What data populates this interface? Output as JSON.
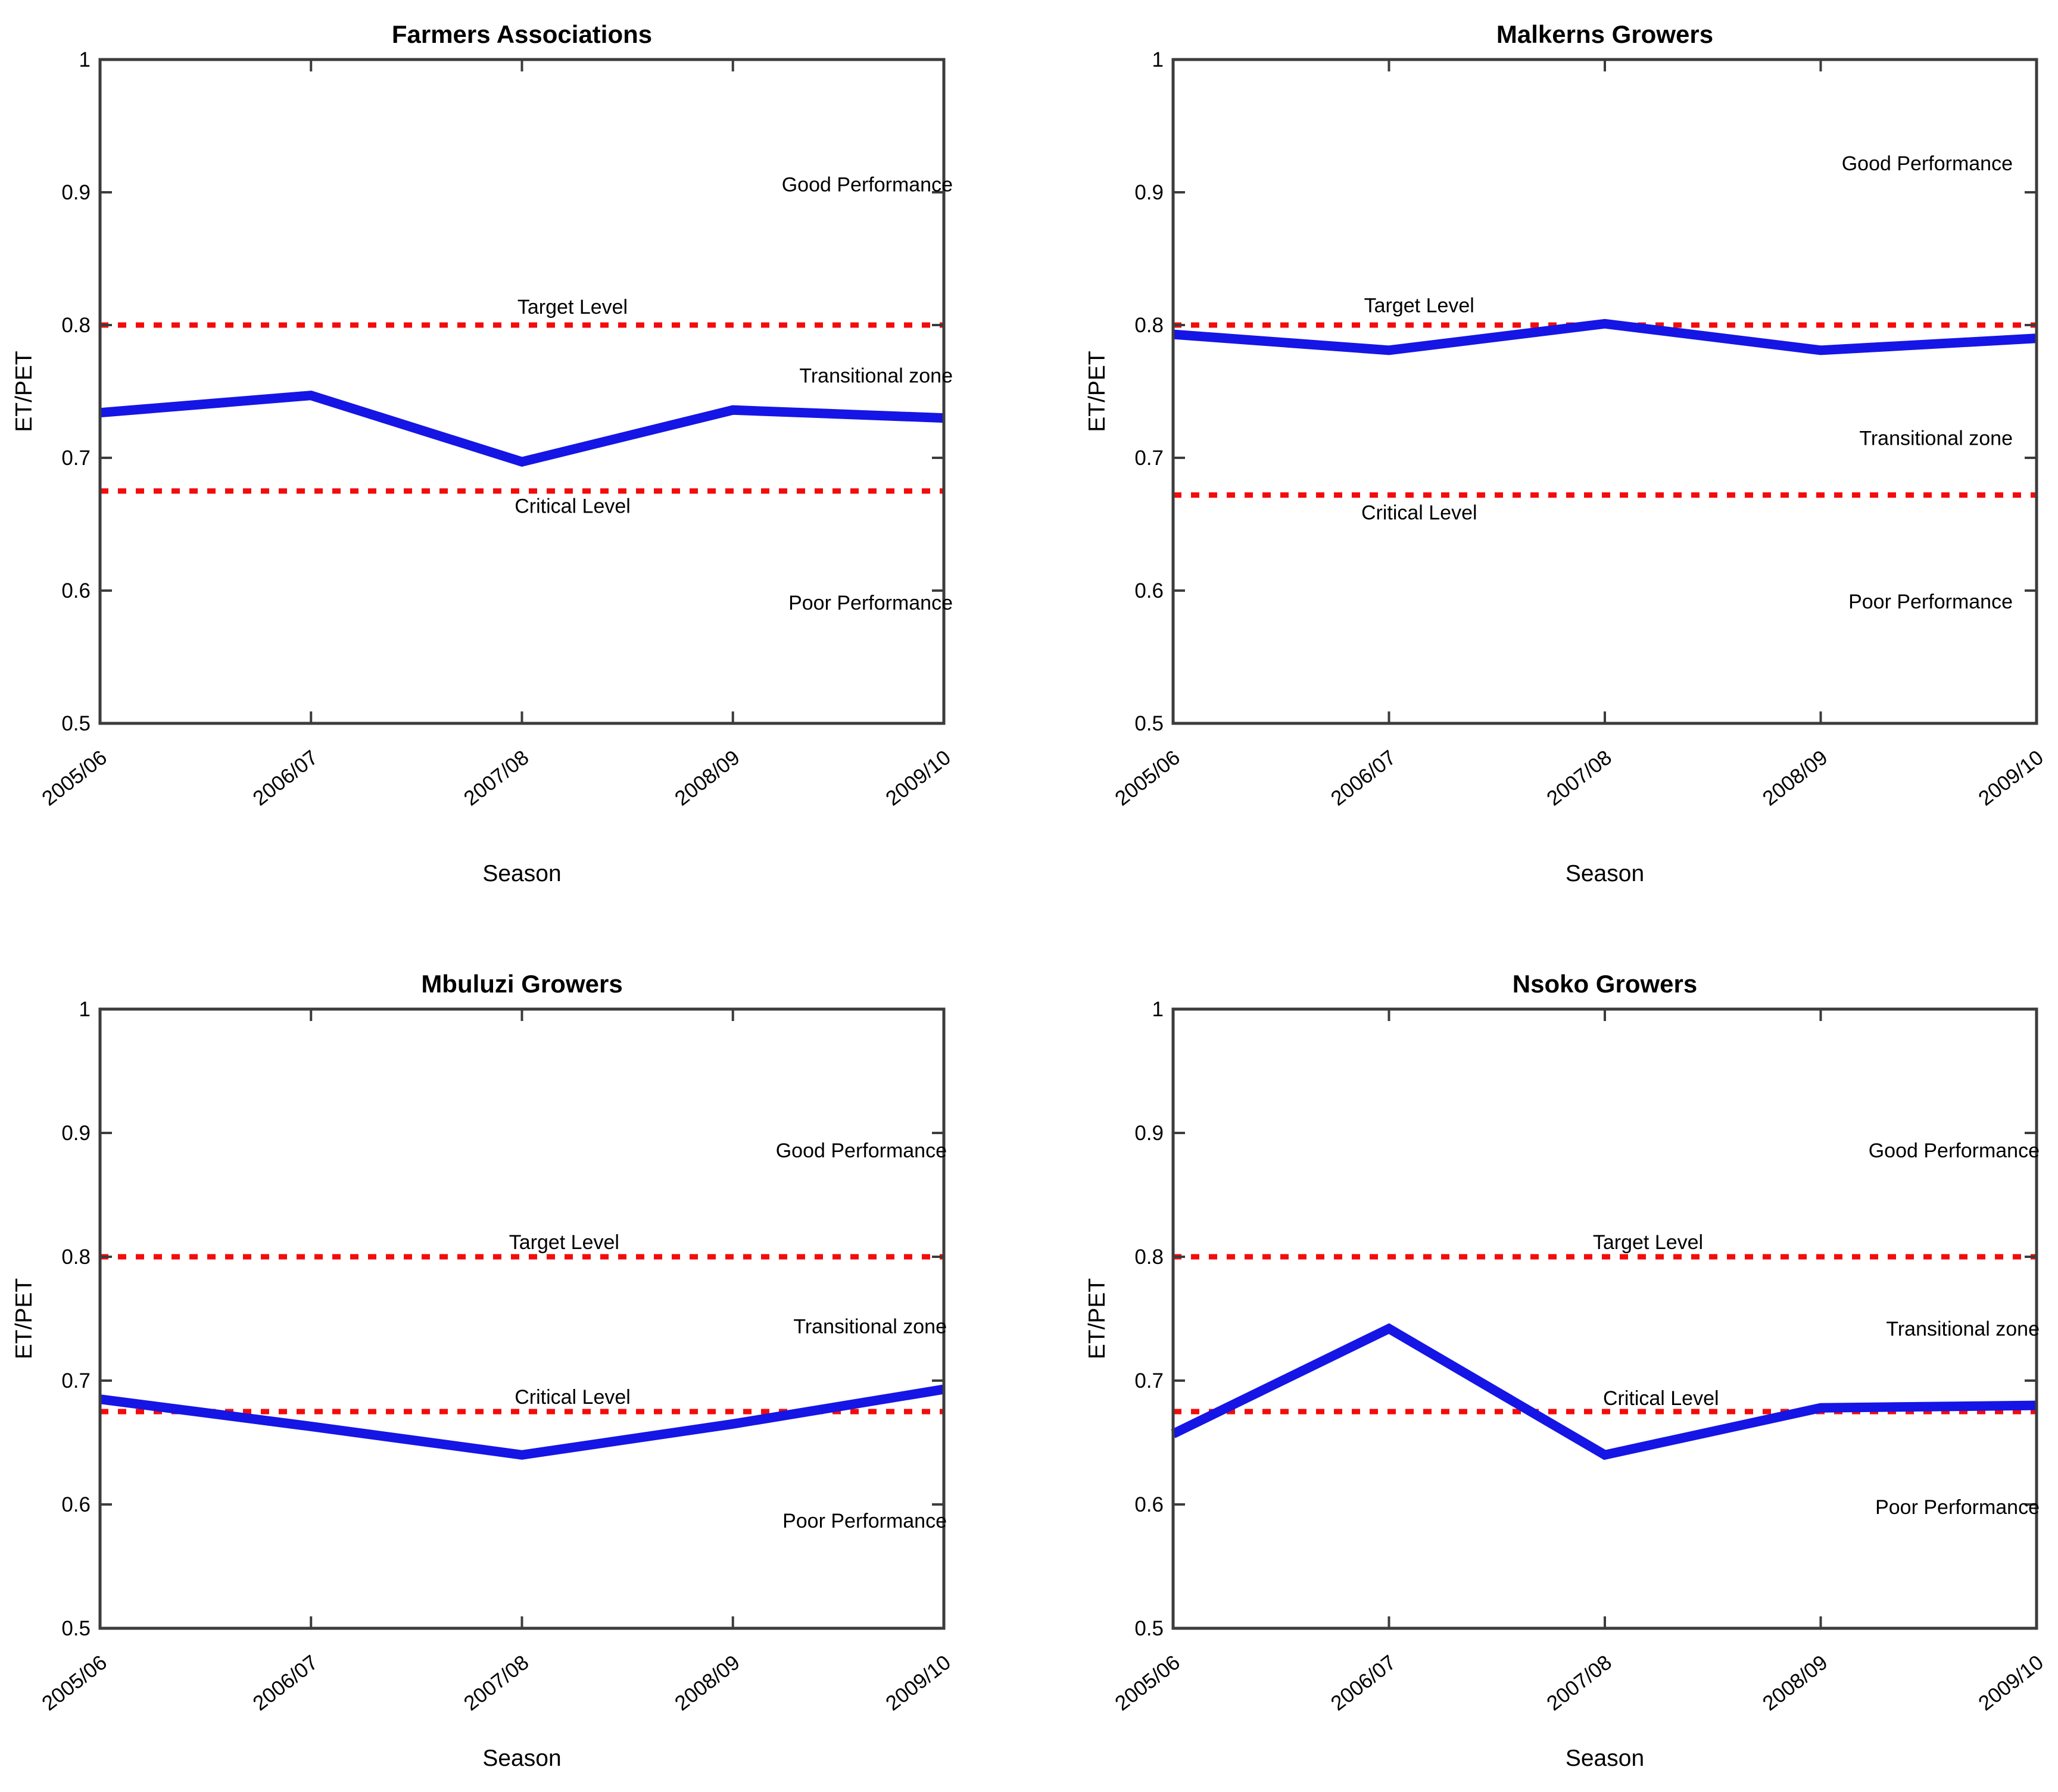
{
  "figure": {
    "description": "ET/PET irrigation scheme performance over seasons, four panels",
    "colors": {
      "line_blue": "#1515e6",
      "dashed_red": "#f40b0b",
      "axis": "#3c3c3c",
      "text": "#000000"
    }
  },
  "chart_data": [
    {
      "type": "line",
      "title": "Farmers Associations",
      "xlabel": "Season",
      "ylabel": "ET/PET",
      "categories": [
        "2005/06",
        "2006/07",
        "2007/08",
        "2008/09",
        "2009/10"
      ],
      "values": [
        0.734,
        0.747,
        0.697,
        0.736,
        0.73
      ],
      "target_level": 0.8,
      "critical_level": 0.675,
      "ylim": [
        0.5,
        1
      ],
      "yticks": [
        "1",
        "0.9",
        "0.8",
        "0.7",
        "0.6",
        "0.5"
      ],
      "legend": "none",
      "grid": false,
      "annotations": [
        {
          "id": "target-level-label",
          "text": "Target Level",
          "xf": 0.56,
          "y": 0.814,
          "align": "middle"
        },
        {
          "id": "critical-level-label",
          "text": "Critical Level",
          "xf": 0.56,
          "y": 0.664,
          "align": "middle"
        },
        {
          "id": "good-performance-label",
          "text": "Good Performance",
          "xf": 1,
          "y": 0.906,
          "align": "end"
        },
        {
          "id": "transitional-zone-label",
          "text": "Transitional zone",
          "xf": 1,
          "y": 0.762,
          "align": "end"
        },
        {
          "id": "poor-performance-label",
          "text": "Poor Performance",
          "xf": 1,
          "y": 0.591,
          "align": "end"
        }
      ]
    },
    {
      "type": "line",
      "title": "Malkerns Growers",
      "xlabel": "Season",
      "ylabel": "ET/PET",
      "categories": [
        "2005/06",
        "2006/07",
        "2007/08",
        "2008/09",
        "2009/10"
      ],
      "values": [
        0.793,
        0.781,
        0.801,
        0.781,
        0.79
      ],
      "target_level": 0.8,
      "critical_level": 0.672,
      "ylim": [
        0.5,
        1
      ],
      "yticks": [
        "1",
        "0.9",
        "0.8",
        "0.7",
        "0.6",
        "0.5"
      ],
      "legend": "none",
      "grid": false,
      "annotations": [
        {
          "id": "target-level-label",
          "text": "Target Level",
          "xf": 0.285,
          "y": 0.815,
          "align": "middle"
        },
        {
          "id": "critical-level-label",
          "text": "Critical Level",
          "xf": 0.285,
          "y": 0.659,
          "align": "middle"
        },
        {
          "id": "good-performance-label",
          "text": "Good Performance",
          "xf": 1,
          "y": 0.922,
          "align": "end"
        },
        {
          "id": "transitional-zone-label",
          "text": "Transitional zone",
          "xf": 1,
          "y": 0.715,
          "align": "end"
        },
        {
          "id": "poor-performance-label",
          "text": "Poor Performance",
          "xf": 1,
          "y": 0.592,
          "align": "end"
        }
      ]
    },
    {
      "type": "line",
      "title": "Mbuluzi Growers",
      "xlabel": "Season",
      "ylabel": "ET/PET",
      "categories": [
        "2005/06",
        "2006/07",
        "2007/08",
        "2008/09",
        "2009/10"
      ],
      "values": [
        0.685,
        0.663,
        0.64,
        0.665,
        0.693
      ],
      "target_level": 0.8,
      "critical_level": 0.675,
      "ylim": [
        0.5,
        1
      ],
      "yticks": [
        "1",
        "0.9",
        "0.8",
        "0.7",
        "0.6",
        "0.5"
      ],
      "legend": "none",
      "grid": false,
      "annotations": [
        {
          "id": "target-level-label",
          "text": "Target Level",
          "xf": 0.55,
          "y": 0.812,
          "align": "middle"
        },
        {
          "id": "critical-level-label",
          "text": "Critical Level",
          "xf": 0.56,
          "y": 0.687,
          "align": "middle"
        },
        {
          "id": "good-performance-label",
          "text": "Good Performance",
          "xf": 1,
          "y": 0.886,
          "align": "end"
        },
        {
          "id": "transitional-zone-label",
          "text": "Transitional zone",
          "xf": 1,
          "y": 0.744,
          "align": "end"
        },
        {
          "id": "poor-performance-label",
          "text": "Poor Performance",
          "xf": 1,
          "y": 0.587,
          "align": "end"
        }
      ]
    },
    {
      "type": "line",
      "title": "Nsoko Growers",
      "xlabel": "Season",
      "ylabel": "ET/PET",
      "categories": [
        "2005/06",
        "2006/07",
        "2007/08",
        "2008/09",
        "2009/10"
      ],
      "values": [
        0.657,
        0.742,
        0.64,
        0.678,
        0.68
      ],
      "target_level": 0.8,
      "critical_level": 0.675,
      "ylim": [
        0.5,
        1
      ],
      "yticks": [
        "1",
        "0.9",
        "0.8",
        "0.7",
        "0.6",
        "0.5"
      ],
      "legend": "none",
      "grid": false,
      "annotations": [
        {
          "id": "target-level-label",
          "text": "Target Level",
          "xf": 0.55,
          "y": 0.812,
          "align": "middle"
        },
        {
          "id": "critical-level-label",
          "text": "Critical Level",
          "xf": 0.565,
          "y": 0.686,
          "align": "middle"
        },
        {
          "id": "good-performance-label",
          "text": "Good Performance",
          "xf": 1,
          "y": 0.886,
          "align": "end"
        },
        {
          "id": "transitional-zone-label",
          "text": "Transitional zone",
          "xf": 1,
          "y": 0.742,
          "align": "end"
        },
        {
          "id": "poor-performance-label",
          "text": "Poor Performance",
          "xf": 1,
          "y": 0.598,
          "align": "end"
        }
      ]
    }
  ]
}
